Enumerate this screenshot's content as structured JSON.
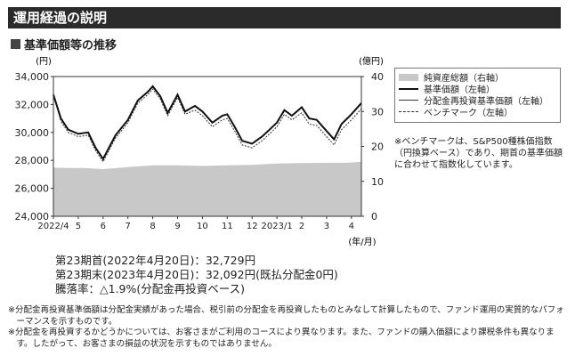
{
  "section_title": "運用経過の説明",
  "chart_heading": "基準価額等の推移",
  "chart_data": {
    "type": "line",
    "left_axis_unit": "(円)",
    "right_axis_unit": "(億円)",
    "x_unit": "(年/月)",
    "left_ticks": [
      "24,000",
      "26,000",
      "28,000",
      "30,000",
      "32,000",
      "34,000"
    ],
    "left_ylim": [
      24000,
      34000
    ],
    "right_ticks": [
      "0",
      "10",
      "20",
      "30",
      "40"
    ],
    "right_ylim": [
      0,
      40
    ],
    "x_ticks": [
      "2022/4",
      "5",
      "6",
      "7",
      "8",
      "9",
      "10",
      "11",
      "12",
      "2023/1",
      "2",
      "3",
      "4"
    ],
    "grid": false,
    "legend": "top-right",
    "series": [
      {
        "name": "純資産総額（右軸）",
        "axis": "right",
        "style": "area",
        "color": "#c8c8c8",
        "x": [
          0,
          0.6,
          1.2,
          2,
          3,
          4,
          5,
          6,
          7,
          8,
          9,
          10,
          11,
          11.7,
          12,
          12.4
        ],
        "values": [
          13.9,
          13.8,
          13.8,
          13.5,
          14.1,
          14.6,
          14.6,
          14.4,
          14.6,
          14.7,
          15.1,
          15.2,
          15.3,
          15.3,
          15.4,
          15.6
        ]
      },
      {
        "name": "基準価額（左軸）",
        "axis": "left",
        "style": "bold",
        "color": "#111",
        "x": [
          0,
          0.3,
          0.6,
          1.0,
          1.4,
          1.7,
          2.0,
          2.5,
          3.0,
          3.4,
          3.8,
          4.0,
          4.3,
          4.6,
          5.0,
          5.3,
          5.7,
          6.0,
          6.4,
          6.8,
          7.0,
          7.3,
          7.6,
          8.0,
          8.4,
          8.7,
          9.0,
          9.3,
          9.6,
          10.0,
          10.3,
          10.6,
          11.0,
          11.3,
          11.6,
          12.0,
          12.4
        ],
        "values": [
          32700,
          31000,
          30200,
          29900,
          30000,
          28900,
          28100,
          29800,
          30900,
          32300,
          32900,
          33300,
          32600,
          31400,
          32700,
          31500,
          31900,
          31500,
          30700,
          31200,
          31300,
          30400,
          29400,
          29200,
          29700,
          30200,
          30700,
          31600,
          31200,
          31800,
          31000,
          30900,
          30100,
          29500,
          30600,
          31300,
          32100
        ]
      },
      {
        "name": "分配金再投資基準価額（左軸）",
        "axis": "left",
        "style": "thin",
        "color": "#333",
        "x": [
          0,
          0.3,
          0.6,
          1.0,
          1.4,
          1.7,
          2.0,
          2.5,
          3.0,
          3.4,
          3.8,
          4.0,
          4.3,
          4.6,
          5.0,
          5.3,
          5.7,
          6.0,
          6.4,
          6.8,
          7.0,
          7.3,
          7.6,
          8.0,
          8.4,
          8.7,
          9.0,
          9.3,
          9.6,
          10.0,
          10.3,
          10.6,
          11.0,
          11.3,
          11.6,
          12.0,
          12.4
        ],
        "values": [
          32700,
          31000,
          30200,
          29900,
          30000,
          28900,
          28100,
          29800,
          30900,
          32300,
          32900,
          33300,
          32600,
          31400,
          32700,
          31500,
          31900,
          31500,
          30700,
          31200,
          31300,
          30400,
          29400,
          29200,
          29700,
          30200,
          30700,
          31600,
          31200,
          31800,
          31000,
          30900,
          30100,
          29500,
          30600,
          31300,
          32100
        ]
      },
      {
        "name": "ベンチマーク（左軸）",
        "axis": "left",
        "style": "dash",
        "color": "#333",
        "x": [
          0,
          0.3,
          0.6,
          1.0,
          1.4,
          1.7,
          2.0,
          2.5,
          3.0,
          3.4,
          3.8,
          4.0,
          4.3,
          4.6,
          5.0,
          5.3,
          5.7,
          6.0,
          6.4,
          6.8,
          7.0,
          7.3,
          7.6,
          8.0,
          8.4,
          8.7,
          9.0,
          9.3,
          9.6,
          10.0,
          10.3,
          10.6,
          11.0,
          11.3,
          11.6,
          12.0,
          12.4
        ],
        "values": [
          32700,
          30800,
          30000,
          29700,
          29800,
          28700,
          27900,
          29600,
          30700,
          32100,
          32700,
          33100,
          32400,
          31200,
          32500,
          31300,
          31600,
          31200,
          30400,
          30900,
          31000,
          30100,
          29100,
          28900,
          29400,
          29900,
          30400,
          31300,
          30900,
          31400,
          30600,
          30500,
          29700,
          29100,
          30200,
          30900,
          31700
        ]
      }
    ]
  },
  "bench_note": "※ベンチマークは、S&P500種株価指数（円換算ベース）であり、期首の基準価額に合わせて指数化しています。",
  "stats": {
    "start": "第23期首(2022年4月20日)：32,729円",
    "end": "第23期末(2023年4月20日)：32,092円(既払分配金0円)",
    "change": "騰落率：△1.9%(分配金再投資ベース)"
  },
  "notes": [
    "※分配金再投資基準価額は分配金実績があった場合、税引前の分配金を再投資したものとみなして計算したもので、ファンド運用の実質的なパフォーマンスを示すものです。",
    "※分配金を再投資するかどうかについては、お客さまがご利用のコースにより異なります。また、ファンドの購入価額により課税条件も異なります。したがって、お客さまの損益の状況を示すものではありません。"
  ]
}
